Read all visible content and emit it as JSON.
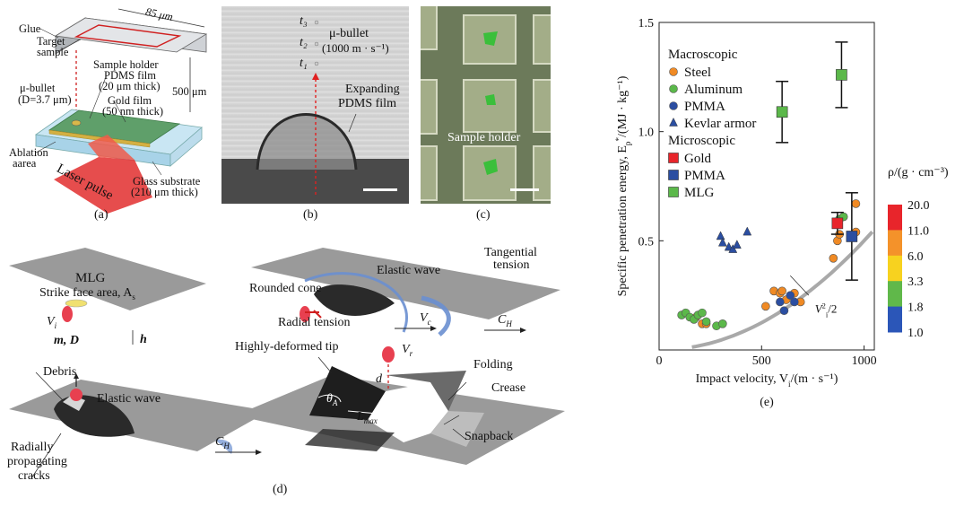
{
  "panel_a": {
    "caption": "(a)",
    "width_label": "85 μm",
    "glue": "Glue",
    "target_sample_l1": "Target",
    "target_sample_l2": "sample",
    "sample_holder": "Sample holder",
    "pdms_film_l1": "PDMS film",
    "pdms_film_l2": "(20 μm thick)",
    "bullet_l1": "μ-bullet",
    "bullet_l2": "(D=3.7 μm)",
    "gold_film_l1": "Gold film",
    "gold_film_l2": "(50 nm thick)",
    "distance": "500 μm",
    "ablation_l1": "Ablation",
    "ablation_l2": "aarea",
    "glass_l1": "Glass substrate",
    "glass_l2": "(210 μm thick)",
    "laser": "Laser pulse"
  },
  "panel_b": {
    "caption": "(b)",
    "t3": "t₃",
    "t2": "t₂",
    "t1": "t₁",
    "bullet_l1": "μ-bullet",
    "bullet_l2": "(1000 m · s⁻¹)",
    "expanding_l1": "Expanding",
    "expanding_l2": "PDMS film"
  },
  "panel_c": {
    "caption": "(c)",
    "sample_holder": "Sample holder"
  },
  "panel_d": {
    "caption": "(d)",
    "mlg": "MLG",
    "strike_face": "Strike face area, A",
    "strike_face_sub": "s",
    "vi": "V",
    "vi_sub": "i",
    "h": "h",
    "md": "m, D",
    "rounded_cone": "Rounded cone",
    "elastic_wave_1": "Elastic wave",
    "tangential_l1": "Tangential",
    "tangential_l2": "tension",
    "radial_tension": "Radial tension",
    "vc": "V",
    "vc_sub": "c",
    "ch_1": "C",
    "ch_1_sub": "H",
    "debris": "Debris",
    "elastic_wave_2": "Elastic wave",
    "radially_l1": "Radially",
    "radially_l2": "propagating",
    "radially_l3": "cracks",
    "ch_2": "C",
    "ch_2_sub": "H",
    "highly_deformed": "Highly-deformed tip",
    "vr": "V",
    "vr_sub": "r",
    "folding": "Folding",
    "d": "d",
    "theta": "θ",
    "theta_sub": "A",
    "petal": "Petal",
    "crease": "Crease",
    "lmax": "L",
    "lmax_sub": "max",
    "snapback": "Snapback"
  },
  "chart_data": {
    "type": "scatter",
    "caption": "(e)",
    "xlabel": "Impact velocity, V",
    "xlabel_sub": "i",
    "xlabel_unit": "/(m · s⁻¹)",
    "ylabel": "Specific penetration energy, E",
    "ylabel_sub": "p",
    "ylabel_sup": "*",
    "ylabel_unit": "/(MJ · kg⁻¹)",
    "xlim": [
      0,
      1050
    ],
    "ylim": [
      0,
      1.5
    ],
    "x_ticks": [
      "0",
      "500",
      "1000"
    ],
    "y_ticks": [
      "0.5",
      "1.0",
      "1.5"
    ],
    "x_tick_values": [
      0,
      500,
      1000
    ],
    "y_tick_values": [
      0.5,
      1.0,
      1.5
    ],
    "legend_group_1": "Macroscopic",
    "legend_group_2": "Microscopic",
    "curve_label": "V",
    "curve_label_sub": "i",
    "curve_label_sup": "2",
    "curve_label_tail": "/2",
    "series": [
      {
        "name": "Steel",
        "marker": "circle",
        "color": "#f08a24",
        "points": [
          [
            180,
            0.15
          ],
          [
            210,
            0.12
          ],
          [
            230,
            0.12
          ],
          [
            520,
            0.2
          ],
          [
            560,
            0.27
          ],
          [
            590,
            0.26
          ],
          [
            600,
            0.27
          ],
          [
            620,
            0.23
          ],
          [
            660,
            0.26
          ],
          [
            690,
            0.22
          ],
          [
            850,
            0.42
          ],
          [
            870,
            0.5
          ],
          [
            880,
            0.53
          ],
          [
            960,
            0.54
          ],
          [
            960,
            0.67
          ]
        ]
      },
      {
        "name": "Aluminum",
        "marker": "circle",
        "color": "#5bb84a",
        "points": [
          [
            110,
            0.16
          ],
          [
            130,
            0.17
          ],
          [
            150,
            0.15
          ],
          [
            170,
            0.14
          ],
          [
            190,
            0.16
          ],
          [
            210,
            0.17
          ],
          [
            230,
            0.13
          ],
          [
            280,
            0.11
          ],
          [
            310,
            0.12
          ],
          [
            880,
            0.6
          ],
          [
            900,
            0.61
          ]
        ]
      },
      {
        "name": "PMMA",
        "marker": "circle",
        "color": "#2b4ea1",
        "points": [
          [
            590,
            0.22
          ],
          [
            610,
            0.18
          ],
          [
            640,
            0.25
          ],
          [
            660,
            0.22
          ]
        ]
      },
      {
        "name": "Kevlar armor",
        "marker": "triangle",
        "color": "#2b4ea1",
        "points": [
          [
            300,
            0.52
          ],
          [
            310,
            0.49
          ],
          [
            340,
            0.47
          ],
          [
            360,
            0.46
          ],
          [
            380,
            0.48
          ],
          [
            430,
            0.54
          ]
        ]
      }
    ],
    "micro_series": [
      {
        "name": "Gold",
        "marker": "square",
        "color": "#e8252b",
        "points": [
          [
            870,
            0.58
          ]
        ],
        "err": [
          0.05
        ]
      },
      {
        "name": "PMMA",
        "marker": "square",
        "color": "#2b4ea1",
        "points": [
          [
            940,
            0.52
          ]
        ],
        "err": [
          0.2
        ]
      },
      {
        "name": "MLG",
        "marker": "square",
        "color": "#5bb84a",
        "points": [
          [
            600,
            1.09
          ],
          [
            890,
            1.26
          ]
        ],
        "err": [
          0.14,
          0.15
        ]
      }
    ],
    "colorbar_title": "ρ/(g · cm⁻³)",
    "colorbar_ticks": [
      "20.0",
      "11.0",
      "6.0",
      "3.3",
      "1.8",
      "1.0"
    ],
    "colorbar_colors": [
      "#e8252b",
      "#f4922a",
      "#f7d21f",
      "#60b84a",
      "#2b56b8"
    ]
  }
}
